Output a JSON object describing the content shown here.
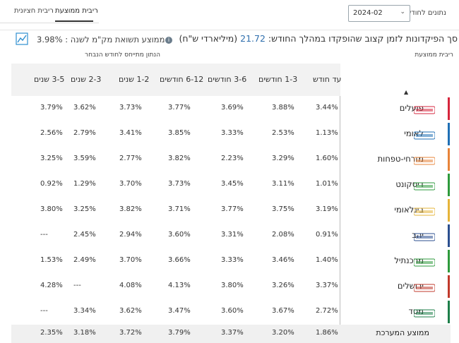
{
  "tabs": [
    {
      "label": "ריבית ממוצעת",
      "active": true
    },
    {
      "label": "ריבית חציונית",
      "active": false
    }
  ],
  "month_label": "נתונים לחודש",
  "month_value": "2024-02",
  "summary": {
    "prefix": "סך הפיקדונות לזמן קצוב שהופקדו במהלך החודש:",
    "total": "21.72",
    "unit": "(מיליארדי ש\"ח)"
  },
  "avg_text": "ממוצע תשואת מק\"מ לשנה : 3.98%",
  "sub_right": "ריבית ממוצעת",
  "sub_left": "הנתון מתייחס לחודש הנבחר",
  "columns": [
    "עד חודש",
    "1-3 חודשים",
    "3-6 חודשים",
    "6-12 חודשים",
    "1-2 שנים",
    "2-3 שנים",
    "3-5 שנים"
  ],
  "rows": [
    {
      "name": "פועלים",
      "logo_text": "בנק הפועלים",
      "color": "#d6253c",
      "values": [
        "3.44%",
        "3.88%",
        "3.69%",
        "3.77%",
        "3.73%",
        "3.62%",
        "3.79%"
      ]
    },
    {
      "name": "לאומי",
      "logo_text": "לאומי",
      "color": "#1f6fb5",
      "values": [
        "1.13%",
        "2.53%",
        "3.33%",
        "3.85%",
        "3.41%",
        "2.79%",
        "2.56%"
      ]
    },
    {
      "name": "מזרחי-טפחות",
      "logo_text": "מזרחי טפחות",
      "color": "#e8843a",
      "values": [
        "1.60%",
        "3.29%",
        "2.23%",
        "3.82%",
        "2.77%",
        "3.59%",
        "3.25%"
      ]
    },
    {
      "name": "דיסקונט",
      "logo_text": "דיסקונט",
      "color": "#2e9a3c",
      "values": [
        "1.01%",
        "3.11%",
        "3.45%",
        "3.73%",
        "3.70%",
        "1.29%",
        "0.92%"
      ]
    },
    {
      "name": "בינלאומי",
      "logo_text": "הבינלאומי",
      "color": "#e6b43a",
      "values": [
        "3.19%",
        "3.75%",
        "3.77%",
        "3.71%",
        "3.82%",
        "3.25%",
        "3.80%"
      ]
    },
    {
      "name": "יהב",
      "logo_text": "בנק יהב",
      "color": "#2b4f8f",
      "values": [
        "0.91%",
        "2.08%",
        "3.31%",
        "3.60%",
        "2.94%",
        "2.45%",
        "---"
      ]
    },
    {
      "name": "מרכנתיל",
      "logo_text": "מרכנתיל",
      "color": "#2e9a3c",
      "values": [
        "1.40%",
        "3.46%",
        "3.33%",
        "3.66%",
        "3.70%",
        "2.49%",
        "1.53%"
      ]
    },
    {
      "name": "ירושלים",
      "logo_text": "בנק ירושלים",
      "color": "#c0392b",
      "values": [
        "3.37%",
        "3.26%",
        "3.80%",
        "4.13%",
        "4.08%",
        "---",
        "4.28%"
      ]
    },
    {
      "name": "מסד",
      "logo_text": "מסד",
      "color": "#1e7f4a",
      "values": [
        "2.72%",
        "3.67%",
        "3.60%",
        "3.47%",
        "3.62%",
        "3.34%",
        "---"
      ]
    }
  ],
  "total": {
    "name": "ממוצע המערכת",
    "values": [
      "1.86%",
      "3.20%",
      "3.37%",
      "3.79%",
      "3.72%",
      "3.18%",
      "2.35%"
    ]
  }
}
